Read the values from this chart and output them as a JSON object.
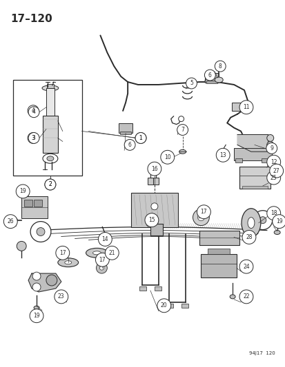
{
  "title": "17–120",
  "watermark": "94J17  120",
  "bg_color": "#ffffff",
  "line_color": "#2a2a2a",
  "title_fontsize": 11,
  "fig_width": 4.14,
  "fig_height": 5.33,
  "dpi": 100
}
